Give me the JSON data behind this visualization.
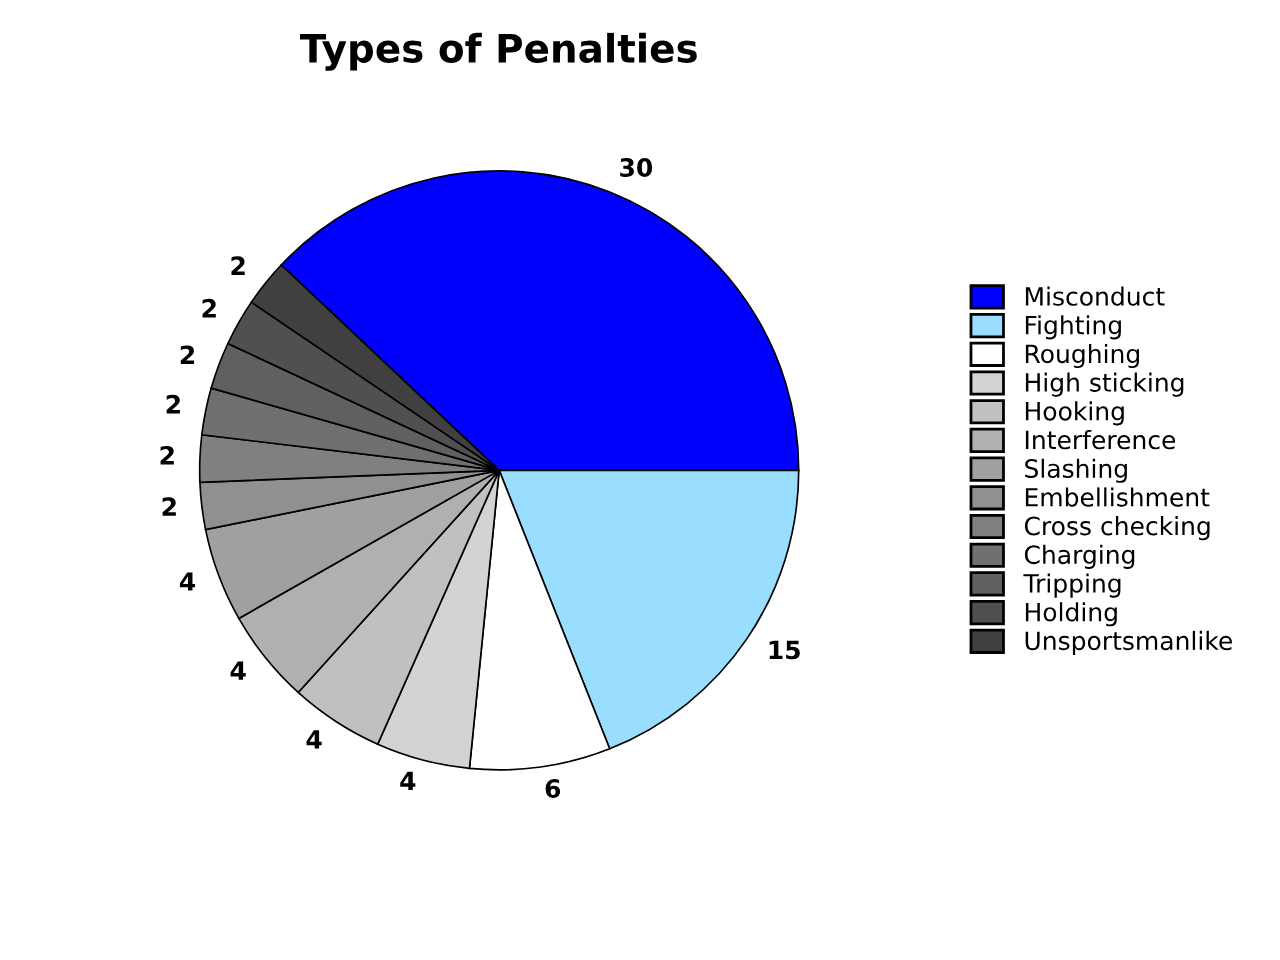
{
  "chart_data": {
    "type": "pie",
    "title": "Types of Penalties",
    "categories": [
      "Misconduct",
      "Fighting",
      "Roughing",
      "High sticking",
      "Hooking",
      "Interference",
      "Slashing",
      "Embellishment",
      "Cross checking",
      "Charging",
      "Tripping",
      "Holding",
      "Unsportsmanlike"
    ],
    "values": [
      30,
      15,
      6,
      4,
      4,
      4,
      4,
      2,
      2,
      2,
      2,
      2,
      2
    ],
    "colors": [
      "#0000ff",
      "#99ddff",
      "#ffffff",
      "#d3d3d3",
      "#c0c0c0",
      "#b0b0b0",
      "#a0a0a0",
      "#909090",
      "#808080",
      "#707070",
      "#606060",
      "#505050",
      "#404040"
    ],
    "data_labels": true,
    "legend": "right"
  }
}
